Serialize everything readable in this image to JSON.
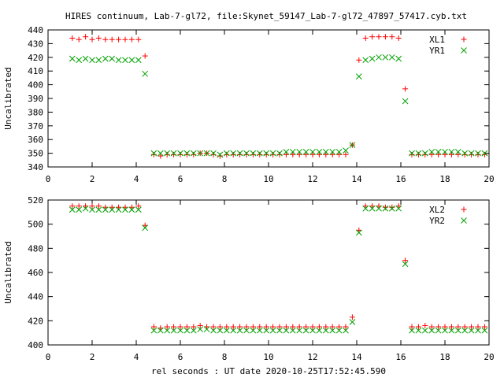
{
  "title": "HIRES continuum, Lab-7-gl72, file:Skynet_59147_Lab-7-gl72_47897_57417.cyb.txt",
  "chart_data": [
    {
      "type": "scatter",
      "ylabel": "Uncalibrated",
      "xlim": [
        0,
        20
      ],
      "ylim": [
        340,
        440
      ],
      "xticks": [
        0,
        2,
        4,
        6,
        8,
        10,
        12,
        14,
        16,
        18,
        20
      ],
      "yticks": [
        340,
        350,
        360,
        370,
        380,
        390,
        400,
        410,
        420,
        430,
        440
      ],
      "legend_position": "top-right",
      "series": [
        {
          "name": "XL1",
          "marker": "plus",
          "color": "#ff0000",
          "x": [
            1.1,
            1.4,
            1.7,
            2.0,
            2.3,
            2.6,
            2.9,
            3.2,
            3.5,
            3.8,
            4.1,
            4.4,
            4.8,
            5.1,
            5.4,
            5.7,
            6.0,
            6.3,
            6.6,
            6.9,
            7.2,
            7.5,
            7.8,
            8.1,
            8.4,
            8.7,
            9.0,
            9.3,
            9.6,
            9.9,
            10.2,
            10.5,
            10.8,
            11.1,
            11.4,
            11.7,
            12.0,
            12.3,
            12.6,
            12.9,
            13.2,
            13.5,
            13.8,
            14.1,
            14.4,
            14.7,
            15.0,
            15.3,
            15.6,
            15.9,
            16.2,
            16.5,
            16.8,
            17.1,
            17.4,
            17.7,
            18.0,
            18.3,
            18.6,
            18.9,
            19.2,
            19.5,
            19.8
          ],
          "y": [
            434,
            433,
            435,
            433,
            434,
            433,
            433,
            433,
            433,
            433,
            433,
            421,
            349,
            348,
            349,
            349,
            349,
            349,
            349,
            350,
            350,
            349,
            348,
            349,
            349,
            349,
            349,
            349,
            349,
            349,
            349,
            349,
            349,
            349,
            349,
            349,
            349,
            349,
            349,
            349,
            349,
            349,
            356,
            418,
            434,
            435,
            435,
            435,
            435,
            434,
            397,
            349,
            349,
            349,
            349,
            349,
            349,
            349,
            349,
            349,
            349,
            349,
            349
          ]
        },
        {
          "name": "YR1",
          "marker": "cross",
          "color": "#00a000",
          "x": [
            1.1,
            1.4,
            1.7,
            2.0,
            2.3,
            2.6,
            2.9,
            3.2,
            3.5,
            3.8,
            4.1,
            4.4,
            4.8,
            5.1,
            5.4,
            5.7,
            6.0,
            6.3,
            6.6,
            6.9,
            7.2,
            7.5,
            7.8,
            8.1,
            8.4,
            8.7,
            9.0,
            9.3,
            9.6,
            9.9,
            10.2,
            10.5,
            10.8,
            11.1,
            11.4,
            11.7,
            12.0,
            12.3,
            12.6,
            12.9,
            13.2,
            13.5,
            13.8,
            14.1,
            14.4,
            14.7,
            15.0,
            15.3,
            15.6,
            15.9,
            16.2,
            16.5,
            16.8,
            17.1,
            17.4,
            17.7,
            18.0,
            18.3,
            18.6,
            18.9,
            19.2,
            19.5,
            19.8
          ],
          "y": [
            419,
            418,
            419,
            418,
            418,
            419,
            419,
            418,
            418,
            418,
            418,
            408,
            350,
            350,
            350,
            350,
            350,
            350,
            350,
            350,
            350,
            350,
            349,
            350,
            350,
            350,
            350,
            350,
            350,
            350,
            350,
            350,
            351,
            351,
            351,
            351,
            351,
            351,
            351,
            351,
            351,
            352,
            356,
            406,
            418,
            419,
            420,
            420,
            420,
            419,
            388,
            350,
            350,
            350,
            351,
            351,
            351,
            351,
            351,
            350,
            350,
            350,
            350
          ]
        }
      ]
    },
    {
      "type": "scatter",
      "ylabel": "Uncalibrated",
      "xlabel": "rel seconds : UT date 2020-10-25T17:52:45.590",
      "xlim": [
        0,
        20
      ],
      "ylim": [
        400,
        520
      ],
      "xticks": [
        0,
        2,
        4,
        6,
        8,
        10,
        12,
        14,
        16,
        18,
        20
      ],
      "yticks": [
        400,
        420,
        440,
        460,
        480,
        500,
        520
      ],
      "legend_position": "top-right",
      "series": [
        {
          "name": "XL2",
          "marker": "plus",
          "color": "#ff0000",
          "x": [
            1.1,
            1.4,
            1.7,
            2.0,
            2.3,
            2.6,
            2.9,
            3.2,
            3.5,
            3.8,
            4.1,
            4.4,
            4.8,
            5.1,
            5.4,
            5.7,
            6.0,
            6.3,
            6.6,
            6.9,
            7.2,
            7.5,
            7.8,
            8.1,
            8.4,
            8.7,
            9.0,
            9.3,
            9.6,
            9.9,
            10.2,
            10.5,
            10.8,
            11.1,
            11.4,
            11.7,
            12.0,
            12.3,
            12.6,
            12.9,
            13.2,
            13.5,
            13.8,
            14.1,
            14.4,
            14.7,
            15.0,
            15.3,
            15.6,
            15.9,
            16.2,
            16.5,
            16.8,
            17.1,
            17.4,
            17.7,
            18.0,
            18.3,
            18.6,
            18.9,
            19.2,
            19.5,
            19.8
          ],
          "y": [
            515,
            515,
            515,
            515,
            515,
            514,
            514,
            514,
            514,
            514,
            515,
            499,
            415,
            414,
            415,
            415,
            415,
            415,
            415,
            416,
            415,
            415,
            415,
            415,
            415,
            415,
            415,
            415,
            415,
            415,
            415,
            415,
            415,
            415,
            415,
            415,
            415,
            415,
            415,
            415,
            415,
            415,
            423,
            495,
            515,
            515,
            515,
            514,
            514,
            515,
            470,
            415,
            415,
            416,
            415,
            415,
            415,
            415,
            415,
            415,
            415,
            415,
            415
          ]
        },
        {
          "name": "YR2",
          "marker": "cross",
          "color": "#00a000",
          "x": [
            1.1,
            1.4,
            1.7,
            2.0,
            2.3,
            2.6,
            2.9,
            3.2,
            3.5,
            3.8,
            4.1,
            4.4,
            4.8,
            5.1,
            5.4,
            5.7,
            6.0,
            6.3,
            6.6,
            6.9,
            7.2,
            7.5,
            7.8,
            8.1,
            8.4,
            8.7,
            9.0,
            9.3,
            9.6,
            9.9,
            10.2,
            10.5,
            10.8,
            11.1,
            11.4,
            11.7,
            12.0,
            12.3,
            12.6,
            12.9,
            13.2,
            13.5,
            13.8,
            14.1,
            14.4,
            14.7,
            15.0,
            15.3,
            15.6,
            15.9,
            16.2,
            16.5,
            16.8,
            17.1,
            17.4,
            17.7,
            18.0,
            18.3,
            18.6,
            18.9,
            19.2,
            19.5,
            19.8
          ],
          "y": [
            512,
            512,
            513,
            512,
            512,
            512,
            512,
            512,
            512,
            512,
            512,
            497,
            412,
            412,
            412,
            412,
            412,
            412,
            412,
            413,
            413,
            412,
            412,
            412,
            412,
            412,
            412,
            412,
            412,
            412,
            412,
            412,
            412,
            412,
            412,
            412,
            412,
            412,
            412,
            412,
            412,
            412,
            419,
            493,
            513,
            513,
            513,
            513,
            513,
            513,
            467,
            412,
            412,
            412,
            412,
            412,
            412,
            412,
            412,
            412,
            412,
            412,
            412
          ]
        }
      ]
    }
  ]
}
